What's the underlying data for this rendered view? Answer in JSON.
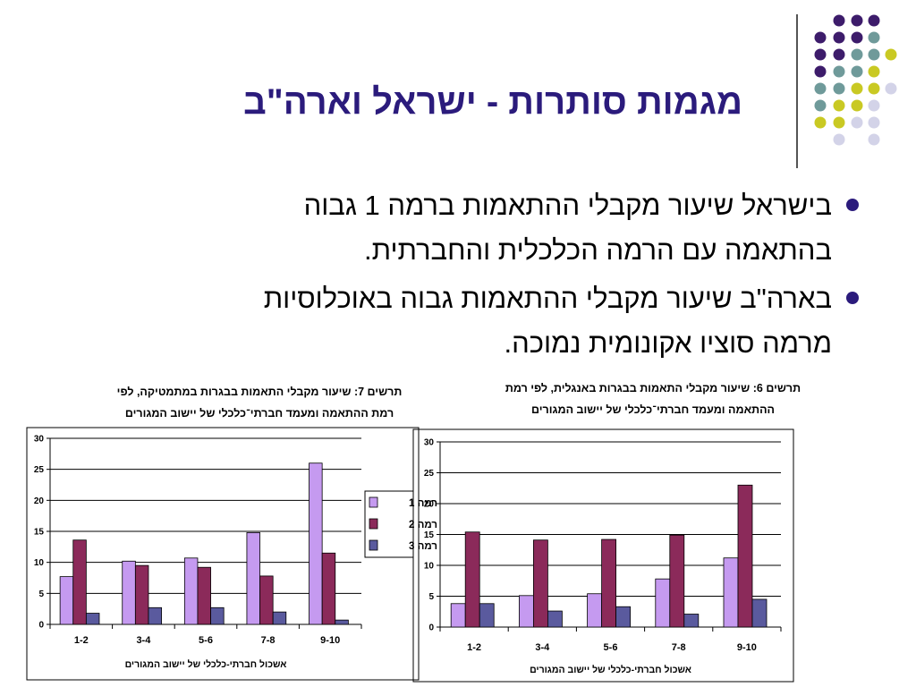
{
  "slide": {
    "title": "מגמות סותרות - ישראל וארה\"ב",
    "bullets": [
      {
        "line1": "בישראל שיעור מקבלי ההתאמות ברמה 1 גבוה",
        "line2": "בהתאמה עם הרמה הכלכלית והחברתית."
      },
      {
        "line1": "בארה\"ב שיעור מקבלי ההתאמות גבוה באוכלוסיות",
        "line2": "מרמה סוציו אקונומית נמוכה."
      }
    ],
    "colors": {
      "accent": "#2b1b7c",
      "level1": "#c59af0",
      "level2": "#8b2a5a",
      "level3": "#5a5a9e"
    },
    "decor_dots": {
      "purple": "#3d1c6b",
      "teal": "#6f9a9a",
      "yellow": "#c9c923",
      "lavender": "#d3d3e8"
    }
  },
  "chart_data": [
    {
      "type": "bar",
      "title_line1": "תרשים 7: שיעור מקבלי התאמות בבגרות במתמטיקה, לפי",
      "title_line2": "רמת ההתאמה ומעמד חברתי־כלכלי של יישוב המגורים",
      "categories": [
        "1-2",
        "3-4",
        "5-6",
        "7-8",
        "9-10"
      ],
      "series": [
        {
          "name": "רמה 1",
          "values": [
            7.7,
            10.2,
            10.7,
            14.8,
            26
          ]
        },
        {
          "name": "רמה 2",
          "values": [
            13.6,
            9.5,
            9.2,
            7.8,
            11.5
          ]
        },
        {
          "name": "רמה 3",
          "values": [
            1.8,
            2.7,
            2.7,
            2.0,
            0.7
          ]
        }
      ],
      "yticks": [
        "0",
        "5",
        "10",
        "15",
        "20",
        "25",
        "30"
      ],
      "ylim": [
        0,
        30
      ],
      "xlabel": "אשכול חברתי-כלכלי של יישוב המגורים",
      "legend": "right",
      "grid": true
    },
    {
      "type": "bar",
      "title_line1": "תרשים 6: שיעור מקבלי התאמות בבגרות באנגלית, לפי רמת",
      "title_line2": "ההתאמה ומעמד חברתי־כלכלי של יישוב המגורים",
      "categories": [
        "1-2",
        "3-4",
        "5-6",
        "7-8",
        "9-10"
      ],
      "series": [
        {
          "name": "רמה 1",
          "values": [
            3.8,
            5.1,
            5.4,
            7.8,
            11.2
          ]
        },
        {
          "name": "רמה 2",
          "values": [
            15.4,
            14.1,
            14.2,
            14.9,
            23
          ]
        },
        {
          "name": "רמה 3",
          "values": [
            3.8,
            2.6,
            3.3,
            2.1,
            4.5
          ]
        }
      ],
      "yticks": [
        "0",
        "5",
        "10",
        "15",
        "20",
        "25",
        "30"
      ],
      "ylim": [
        0,
        30
      ],
      "xlabel": "אשכול חברתי-כלכלי של יישוב המגורים",
      "grid": true
    }
  ]
}
